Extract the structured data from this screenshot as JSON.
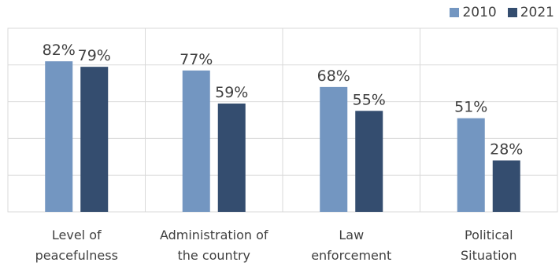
{
  "chart_data": {
    "type": "bar",
    "title": "",
    "xlabel": "",
    "ylabel": "",
    "categories": [
      "Level of peacefulness",
      "Administration of the country",
      "Law enforcement",
      "Political Situation"
    ],
    "category_lines": [
      [
        "Level of",
        "peacefulness"
      ],
      [
        "Administration of",
        "the country"
      ],
      [
        "Law",
        "enforcement"
      ],
      [
        "Political",
        "Situation"
      ]
    ],
    "series": [
      {
        "name": "2010",
        "values": [
          82,
          77,
          68,
          51
        ],
        "color": "#7396c1"
      },
      {
        "name": "2021",
        "values": [
          79,
          59,
          55,
          28
        ],
        "color": "#344d6f"
      }
    ],
    "value_suffix": "%",
    "ylim": [
      0,
      100
    ],
    "y_gridlines": [
      0,
      20,
      40,
      60,
      80,
      100
    ],
    "grid": true,
    "legend_position": "top-right"
  }
}
